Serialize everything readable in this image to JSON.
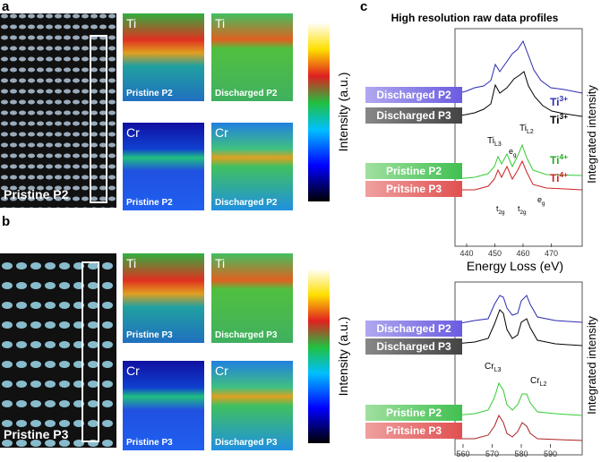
{
  "panel_a": {
    "label": "a",
    "image_label": "Pristine P2",
    "maps": [
      {
        "element": "Ti",
        "caption": "Pristine P2"
      },
      {
        "element": "Ti",
        "caption": "Discharged P2"
      },
      {
        "element": "Cr",
        "caption": "Pristine P2"
      },
      {
        "element": "Cr",
        "caption": "Discharged P2"
      }
    ],
    "colorbar_label": "Intensity (a.u.)"
  },
  "panel_b": {
    "label": "b",
    "image_label": "Pristine P3",
    "maps": [
      {
        "element": "Ti",
        "caption": "Pristine P3"
      },
      {
        "element": "Ti",
        "caption": "Discharged P3"
      },
      {
        "element": "Cr",
        "caption": "Pristine P3"
      },
      {
        "element": "Cr",
        "caption": "Discharged P3"
      }
    ],
    "colorbar_label": "Intensity (a.u.)"
  },
  "panel_c": {
    "label": "c",
    "title": "High resolution raw data profiles",
    "top": {
      "legend": [
        "Discharged P2",
        "Discharged P3",
        "Pristine P2",
        "Pritsine P3"
      ],
      "xticks": [
        "440",
        "450",
        "460",
        "470"
      ],
      "xlabel": "Energy Loss (eV)",
      "ylabel": "Integrated intensity",
      "annotations": {
        "ti3_blue": {
          "base": "Ti",
          "sup": "3+"
        },
        "ti3_black": {
          "base": "Ti",
          "sup": "3+"
        },
        "til3": {
          "base": "Ti",
          "sub": "L3"
        },
        "til2": {
          "base": "Ti",
          "sub": "L2"
        },
        "ti4_green": {
          "base": "Ti",
          "sup": "4+"
        },
        "ti4_red": {
          "base": "Ti",
          "sup": "4+"
        },
        "eg1": {
          "base": "e",
          "sub": "g"
        },
        "eg2": {
          "base": "e",
          "sub": "g"
        },
        "t2g1": {
          "base": "t",
          "sub": "2g"
        },
        "t2g2": {
          "base": "t",
          "sub": "2g"
        }
      }
    },
    "bottom": {
      "legend": [
        "Discharged P2",
        "Discharged P3",
        "Pristine P2",
        "Pritsine P3"
      ],
      "xticks": [
        "560",
        "570",
        "580",
        "590"
      ],
      "ylabel": "Integrated intensity",
      "annotations": {
        "crl3": {
          "base": "Cr",
          "sub": "L3"
        },
        "crl2": {
          "base": "Cr",
          "sub": "L2"
        }
      }
    }
  }
}
